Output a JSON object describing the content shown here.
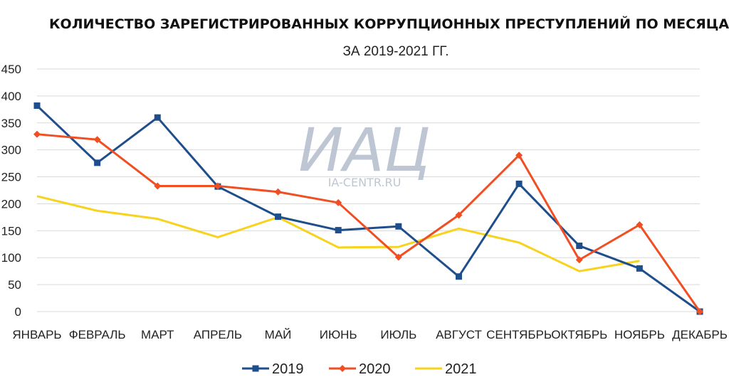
{
  "chart_data": {
    "type": "line",
    "title": "КОЛИЧЕСТВО ЗАРЕГИСТРИРОВАННЫХ КОРРУПЦИОННЫХ ПРЕСТУПЛЕНИЙ ПО МЕСЯЦАМ",
    "subtitle": "ЗА 2019-2021 ГГ.",
    "categories": [
      "ЯНВАРЬ",
      "ФЕВРАЛЬ",
      "МАРТ",
      "АПРЕЛЬ",
      "МАЙ",
      "ИЮНЬ",
      "ИЮЛЬ",
      "АВГУСТ",
      "СЕНТЯБРЬ",
      "ОКТЯБРЬ",
      "НОЯБРЬ",
      "ДЕКАБРЬ"
    ],
    "ylim": [
      0,
      450
    ],
    "yticks": [
      0,
      50,
      100,
      150,
      200,
      250,
      300,
      350,
      400,
      450
    ],
    "grid": true,
    "legend": "bottom",
    "series": [
      {
        "name": "2019",
        "color": "#1f4e8c",
        "marker": "square",
        "values": [
          382,
          276,
          360,
          232,
          176,
          151,
          158,
          65,
          237,
          122,
          80,
          0
        ]
      },
      {
        "name": "2020",
        "color": "#f04e23",
        "marker": "diamond",
        "values": [
          329,
          319,
          233,
          233,
          222,
          202,
          101,
          179,
          290,
          96,
          161,
          0
        ]
      },
      {
        "name": "2021",
        "color": "#f7d31e",
        "marker": "none",
        "values": [
          214,
          187,
          172,
          138,
          175,
          119,
          120,
          154,
          128,
          75,
          94,
          null
        ]
      }
    ]
  },
  "watermark": {
    "letters": "ИАЦ",
    "url": "IA-CENTR.RU"
  }
}
